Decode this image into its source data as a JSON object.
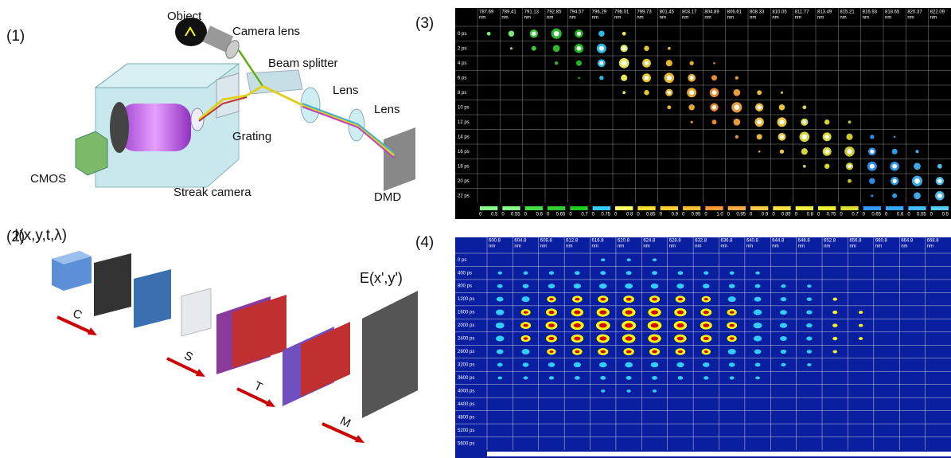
{
  "panels": [
    "(1)",
    "(2)",
    "(3)",
    "(4)"
  ],
  "setup": {
    "object": "Object",
    "camera_lens": "Camera lens",
    "beam_splitter": "Beam splitter",
    "lens_1": "Lens",
    "lens_2": "Lens",
    "grating": "Grating",
    "cmos": "CMOS",
    "streak_camera": "Streak camera",
    "dmd": "DMD"
  },
  "encoding": {
    "input": "I(x,y,t,λ)",
    "steps": [
      "C",
      "S",
      "T",
      "M"
    ],
    "output": "E(x',y')"
  },
  "frames_a": {
    "unit": "nm",
    "wavelengths": [
      "787.69",
      "789.41",
      "791.13",
      "792.85",
      "794.57",
      "796.29",
      "798.01",
      "799.73",
      "801.45",
      "803.17",
      "804.89",
      "806.61",
      "808.33",
      "810.05",
      "811.77",
      "813.49",
      "815.21",
      "816.93",
      "818.65",
      "820.37",
      "822.09"
    ],
    "times": [
      "0 ps",
      "2 ps",
      "4 ps",
      "6 ps",
      "8 ps",
      "10 ps",
      "12 ps",
      "14 ps",
      "16 ps",
      "18 ps",
      "20 ps",
      "22 ps"
    ],
    "scale_min": "0",
    "scale_max": [
      "0.5",
      "0.55",
      "0.6",
      "0.65",
      "0.7",
      "0.75",
      "0.8",
      "0.85",
      "0.9",
      "0.95",
      "1.0",
      "0.95",
      "0.9",
      "0.85",
      "0.8",
      "0.75",
      "0.7",
      "0.65",
      "0.6",
      "0.55",
      "0.5"
    ]
  },
  "frames_b": {
    "unit": "nm",
    "wavelengths": [
      "600.8",
      "604.8",
      "608.8",
      "612.8",
      "616.8",
      "620.8",
      "624.8",
      "628.8",
      "632.8",
      "636.8",
      "640.8",
      "644.8",
      "648.8",
      "652.8",
      "656.8",
      "660.8",
      "664.8",
      "668.8"
    ],
    "times": [
      "0 ps",
      "400 ps",
      "800 ps",
      "1200 ps",
      "1600 ps",
      "2000 ps",
      "2400 ps",
      "2800 ps",
      "3200 ps",
      "3600 ps",
      "4000 ps",
      "4400 ps",
      "4800 ps",
      "5200 ps",
      "5600 ps"
    ]
  }
}
